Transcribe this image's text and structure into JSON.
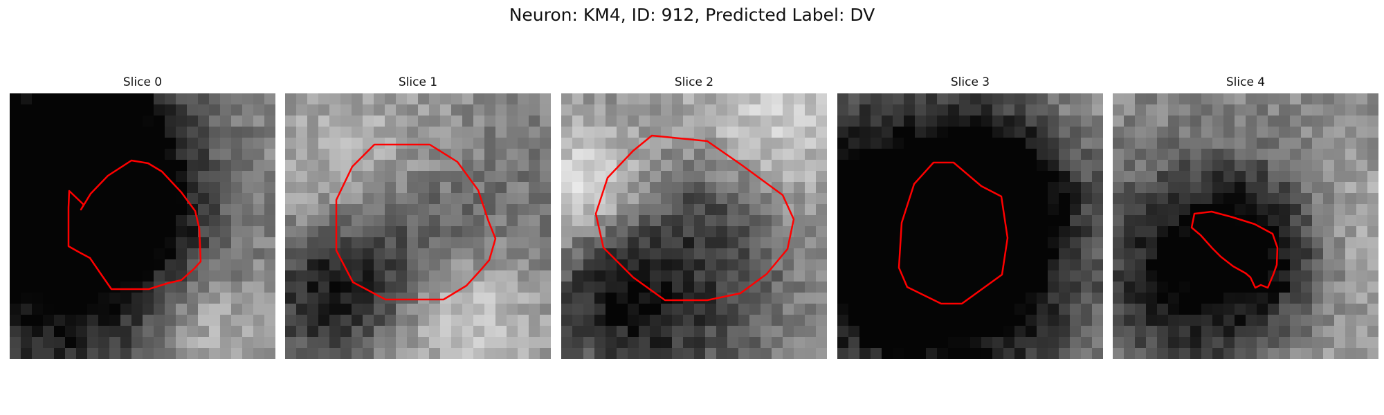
{
  "figure": {
    "title": "Neuron: KM4, ID: 912, Predicted Label: DV",
    "contour_color": "#ff0000"
  },
  "panels": [
    {
      "title": "Slice 0"
    },
    {
      "title": "Slice 1"
    },
    {
      "title": "Slice 2"
    },
    {
      "title": "Slice 3"
    },
    {
      "title": "Slice 4"
    }
  ]
}
